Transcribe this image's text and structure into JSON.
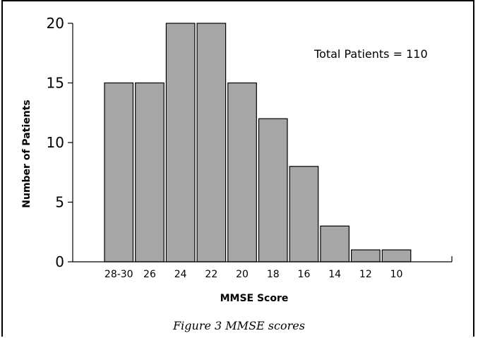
{
  "caption": "Figure 3 MMSE scores",
  "chart_data": {
    "type": "bar",
    "categories": [
      "28-30",
      "26",
      "24",
      "22",
      "20",
      "18",
      "16",
      "14",
      "12",
      "10"
    ],
    "values": [
      15,
      15,
      20,
      20,
      15,
      12,
      8,
      3,
      1,
      1
    ],
    "title": "",
    "xlabel": "MMSE Score",
    "ylabel": "Number of Patients",
    "ylim": [
      0,
      20
    ],
    "yticks": [
      0,
      5,
      10,
      15,
      20
    ],
    "annotation": "Total Patients = 110",
    "grid": false,
    "bar_color": "#a6a6a6",
    "bar_edge_color": "#000000"
  }
}
